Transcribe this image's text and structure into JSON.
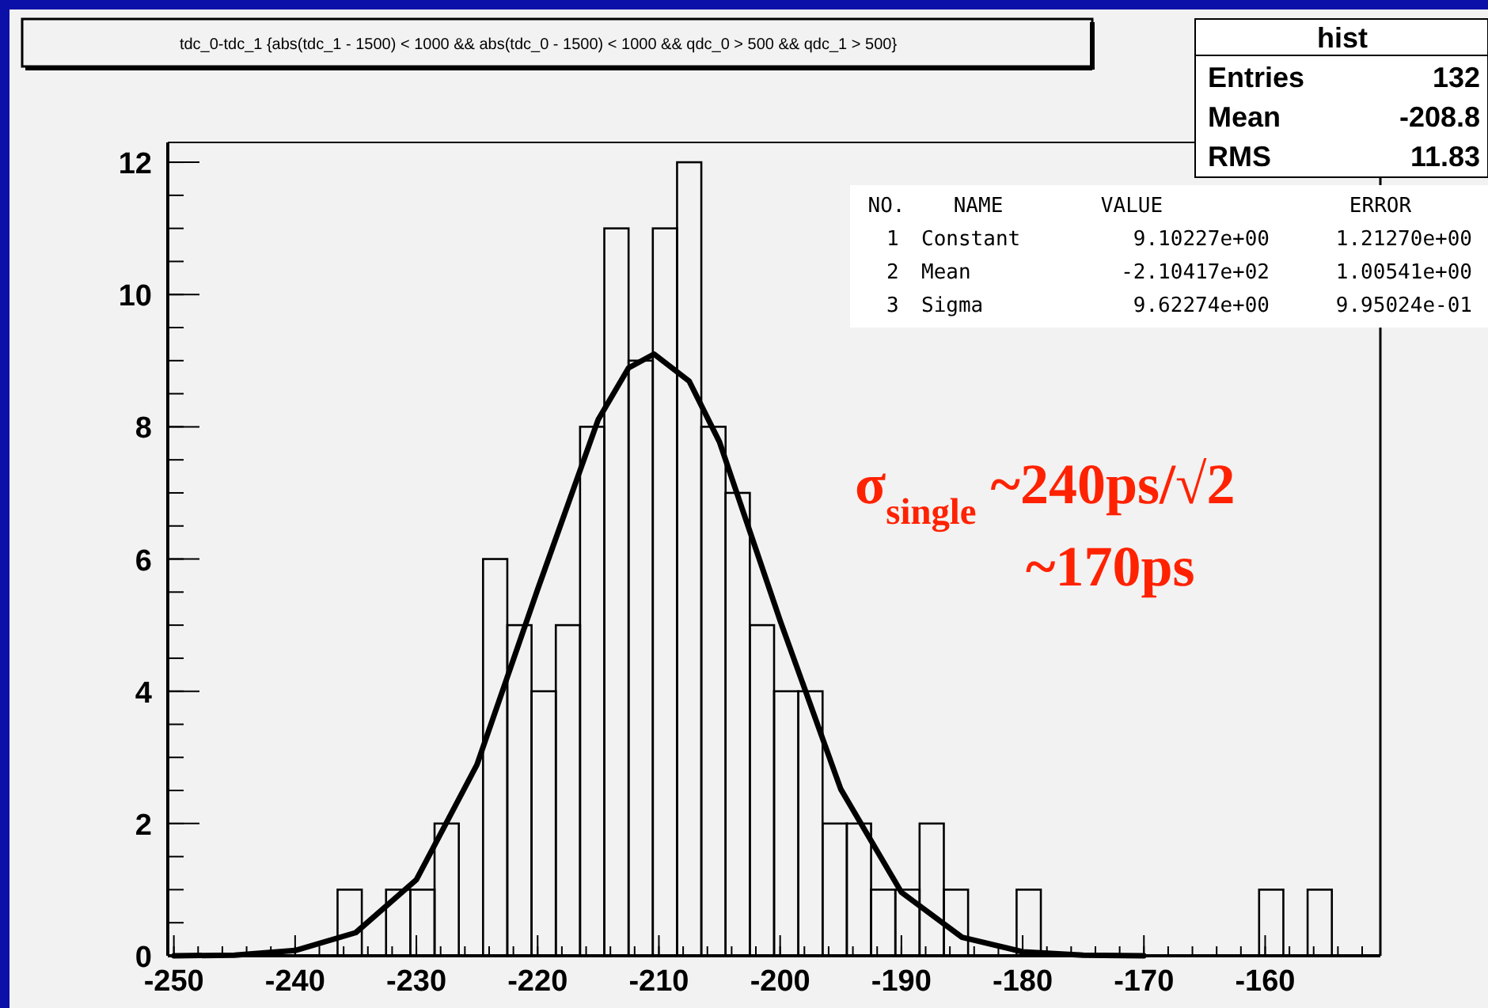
{
  "chart_data": {
    "type": "histogram",
    "title": "tdc_0-tdc_1 {abs(tdc_1 - 1500) < 1000 && abs(tdc_0 - 1500) < 1000 &&  qdc_0 > 500 && qdc_1 > 500}",
    "bins": [
      -250.5,
      -248.5,
      -246.5,
      -244.5,
      -242.5,
      -240.5,
      -238.5,
      -236.5,
      -234.5,
      -232.5,
      -230.5,
      -228.5,
      -226.5,
      -224.5,
      -222.5,
      -220.5,
      -218.5,
      -216.5,
      -214.5,
      -212.5,
      -210.5,
      -208.5,
      -206.5,
      -204.5,
      -202.5,
      -200.5,
      -198.5,
      -196.5,
      -194.5,
      -192.5,
      -190.5,
      -188.5,
      -186.5,
      -184.5,
      -182.5,
      -180.5,
      -178.5,
      -176.5,
      -174.5,
      -172.5,
      -170.5,
      -168.5,
      -166.5,
      -164.5,
      -162.5,
      -160.5,
      -158.5,
      -156.5,
      -154.5,
      -152.5,
      -150.5
    ],
    "values": [
      0,
      0,
      0,
      0,
      0,
      0,
      0,
      1,
      0,
      1,
      1,
      2,
      0,
      6,
      5,
      4,
      5,
      8,
      11,
      9,
      11,
      12,
      8,
      7,
      5,
      4,
      4,
      2,
      2,
      1,
      1,
      2,
      1,
      0,
      0,
      1,
      0,
      0,
      0,
      0,
      0,
      0,
      0,
      0,
      0,
      1,
      0,
      1,
      0,
      0
    ],
    "color": "#000000",
    "series": [
      {
        "type": "line",
        "color": "#000000",
        "x": [
          -250,
          -245,
          -240,
          -235,
          -230,
          -225,
          -220,
          -215,
          -212.5,
          -210.4,
          -207.5,
          -205,
          -200,
          -195,
          -190,
          -185,
          -180,
          -175,
          -170
        ],
        "values": [
          0,
          0.01,
          0.08,
          0.35,
          1.15,
          2.89,
          5.54,
          8.11,
          8.89,
          9.1,
          8.69,
          7.77,
          5.07,
          2.52,
          0.96,
          0.28,
          0.06,
          0.01,
          0
        ]
      }
    ],
    "xlim": [
      -250.5,
      -150.5
    ],
    "ylim": [
      0,
      12.3
    ],
    "xticks": [
      -250,
      -240,
      -230,
      -220,
      -210,
      -200,
      -190,
      -180,
      -170,
      -160
    ],
    "yticks": [
      0,
      2,
      4,
      6,
      8,
      10,
      12
    ],
    "grid": false,
    "annotations": [
      "hist",
      "Entries 132",
      "Mean -208.8",
      "RMS 11.83",
      "NO. NAME VALUE ERROR",
      "1 Constant 9.10227e+00 1.21270e+00",
      "2 Mean -2.10417e+02 1.00541e+00",
      "3 Sigma 9.62274e+00 9.95024e-01",
      "σ$_{single}$ ~240ps/√2",
      "~170ps"
    ]
  }
}
